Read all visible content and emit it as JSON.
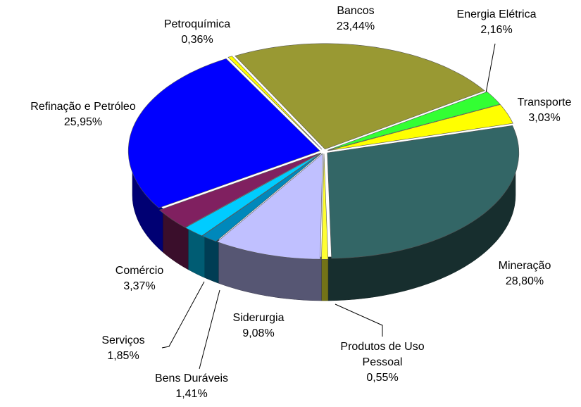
{
  "chart_data": {
    "type": "pie3d",
    "categories": [
      "Bancos",
      "Energia Elétrica",
      "Transporte",
      "Mineração",
      "Produtos de Uso Pessoal",
      "Siderurgia",
      "Bens Duráveis",
      "Serviços",
      "Comércio",
      "Refinação e Petróleo",
      "Petroquímica"
    ],
    "values": [
      23.44,
      2.16,
      3.03,
      28.8,
      0.55,
      9.08,
      1.41,
      1.85,
      3.37,
      25.95,
      0.36
    ],
    "value_labels": [
      "23,44%",
      "2,16%",
      "3,03%",
      "28,80%",
      "0,55%",
      "9,08%",
      "1,41%",
      "1,85%",
      "3,37%",
      "25,95%",
      "0,36%"
    ],
    "colors": [
      "#999933",
      "#33ff33",
      "#ffff00",
      "#336666",
      "#ffff33",
      "#c0c0ff",
      "#0088bb",
      "#00ccff",
      "#802060",
      "#0000ff",
      "#ffff00"
    ]
  }
}
